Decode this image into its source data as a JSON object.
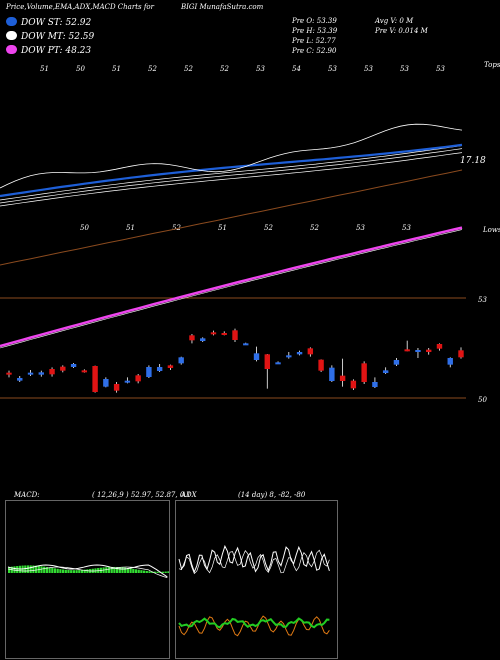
{
  "header": {
    "title": "Price,Volume,EMA,ADX,MACD Charts for",
    "symbol": "BIGI",
    "site": "MunafaSutra.com"
  },
  "legend": [
    {
      "label": "DOW ST: 52.92",
      "color": "#1e5fd8"
    },
    {
      "label": "DOW MT: 52.59",
      "color": "#ffffff"
    },
    {
      "label": "DOW PT: 48.23",
      "color": "#ee44ee"
    }
  ],
  "quote": {
    "open": "Pre  O: 53.39",
    "high": "Pre  H: 53.39",
    "low": "Pre  L: 52.77",
    "close": "Pre  C: 52.90",
    "avgvol": "Avg V: 0  M",
    "vol": "Pre  V: 0.014  M"
  },
  "upper_panel": {
    "top_labels": [
      "51",
      "50",
      "51",
      "52",
      "52",
      "52",
      "53",
      "54",
      "53",
      "53",
      "53",
      "53"
    ],
    "right_top": "Tops",
    "price_label": "17.18",
    "lower_labels": [
      "50",
      "51",
      "52",
      "51",
      "52",
      "52",
      "53",
      "53"
    ],
    "right_lows": "Lows"
  },
  "price_axis": {
    "label_high": "53",
    "label_low": "50"
  },
  "macd": {
    "title": "MACD:",
    "params": "( 12,26,9 ) 52.97, 52.87, 0.1"
  },
  "adx": {
    "title": "ADX",
    "params": "(14 day) 8, -82, -80"
  },
  "chart_data": {
    "type": "candlestick",
    "title": "Price,Volume,EMA,ADX,MACD Charts for BIGI",
    "candles": [
      {
        "o": 50.76,
        "c": 50.7,
        "h": 50.82,
        "l": 50.62,
        "dir": "down"
      },
      {
        "o": 50.52,
        "c": 50.6,
        "h": 50.66,
        "l": 50.48,
        "dir": "up"
      },
      {
        "o": 50.7,
        "c": 50.76,
        "h": 50.84,
        "l": 50.66,
        "dir": "up"
      },
      {
        "o": 50.7,
        "c": 50.77,
        "h": 50.82,
        "l": 50.64,
        "dir": "up"
      },
      {
        "o": 50.87,
        "c": 50.71,
        "h": 50.92,
        "l": 50.64,
        "dir": "down"
      },
      {
        "o": 50.94,
        "c": 50.82,
        "h": 50.98,
        "l": 50.77,
        "dir": "down"
      },
      {
        "o": 50.93,
        "c": 51.02,
        "h": 51.05,
        "l": 50.9,
        "dir": "up"
      },
      {
        "o": 50.83,
        "c": 50.79,
        "h": 50.86,
        "l": 50.76,
        "dir": "down"
      },
      {
        "o": 50.96,
        "c": 50.18,
        "h": 50.97,
        "l": 50.16,
        "dir": "down"
      },
      {
        "o": 50.34,
        "c": 50.57,
        "h": 50.62,
        "l": 50.32,
        "dir": "up"
      },
      {
        "o": 50.42,
        "c": 50.22,
        "h": 50.48,
        "l": 50.16,
        "dir": "down"
      },
      {
        "o": 50.48,
        "c": 50.52,
        "h": 50.62,
        "l": 50.44,
        "dir": "up"
      },
      {
        "o": 50.68,
        "c": 50.5,
        "h": 50.72,
        "l": 50.44,
        "dir": "down"
      },
      {
        "o": 50.63,
        "c": 50.93,
        "h": 50.98,
        "l": 50.6,
        "dir": "up"
      },
      {
        "o": 50.81,
        "c": 50.93,
        "h": 51.02,
        "l": 50.78,
        "dir": "up"
      },
      {
        "o": 50.98,
        "c": 50.9,
        "h": 51.0,
        "l": 50.84,
        "dir": "down"
      },
      {
        "o": 51.04,
        "c": 51.22,
        "h": 51.24,
        "l": 51.0,
        "dir": "up"
      },
      {
        "o": 51.88,
        "c": 51.73,
        "h": 51.92,
        "l": 51.64,
        "dir": "down"
      },
      {
        "o": 51.71,
        "c": 51.79,
        "h": 51.82,
        "l": 51.68,
        "dir": "up"
      },
      {
        "o": 51.97,
        "c": 51.92,
        "h": 52.02,
        "l": 51.88,
        "dir": "down"
      },
      {
        "o": 51.95,
        "c": 51.92,
        "h": 52.0,
        "l": 51.88,
        "dir": "down"
      },
      {
        "o": 52.03,
        "c": 51.74,
        "h": 52.08,
        "l": 51.68,
        "dir": "down"
      },
      {
        "o": 51.61,
        "c": 51.64,
        "h": 51.66,
        "l": 51.6,
        "dir": "up"
      },
      {
        "o": 51.14,
        "c": 51.34,
        "h": 51.54,
        "l": 51.1,
        "dir": "up"
      },
      {
        "o": 51.31,
        "c": 50.87,
        "h": 51.32,
        "l": 50.28,
        "dir": "down"
      },
      {
        "o": 51.05,
        "c": 51.07,
        "h": 51.1,
        "l": 51.02,
        "dir": "up"
      },
      {
        "o": 51.22,
        "c": 51.28,
        "h": 51.38,
        "l": 51.18,
        "dir": "up"
      },
      {
        "o": 51.31,
        "c": 51.38,
        "h": 51.42,
        "l": 51.28,
        "dir": "up"
      },
      {
        "o": 51.49,
        "c": 51.31,
        "h": 51.52,
        "l": 51.24,
        "dir": "down"
      },
      {
        "o": 51.15,
        "c": 50.82,
        "h": 51.16,
        "l": 50.78,
        "dir": "down"
      },
      {
        "o": 50.91,
        "c": 50.51,
        "h": 50.98,
        "l": 50.48,
        "dir": "up"
      },
      {
        "o": 50.67,
        "c": 50.51,
        "h": 51.18,
        "l": 50.34,
        "dir": "down"
      },
      {
        "o": 50.52,
        "c": 50.29,
        "h": 50.56,
        "l": 50.24,
        "dir": "down"
      },
      {
        "o": 51.04,
        "c": 50.48,
        "h": 51.1,
        "l": 50.42,
        "dir": "down"
      },
      {
        "o": 50.48,
        "c": 50.33,
        "h": 50.62,
        "l": 50.3,
        "dir": "up"
      },
      {
        "o": 50.75,
        "c": 50.83,
        "h": 50.92,
        "l": 50.72,
        "dir": "up"
      },
      {
        "o": 51.14,
        "c": 51.0,
        "h": 51.2,
        "l": 50.96,
        "dir": "up"
      },
      {
        "o": 51.46,
        "c": 51.44,
        "h": 51.72,
        "l": 51.4,
        "dir": "down"
      },
      {
        "o": 51.39,
        "c": 51.44,
        "h": 51.5,
        "l": 51.2,
        "dir": "up"
      },
      {
        "o": 51.45,
        "c": 51.38,
        "h": 51.5,
        "l": 51.3,
        "dir": "down"
      },
      {
        "o": 51.62,
        "c": 51.48,
        "h": 51.64,
        "l": 51.42,
        "dir": "down"
      },
      {
        "o": 51.2,
        "c": 51.0,
        "h": 51.22,
        "l": 50.92,
        "dir": "up"
      },
      {
        "o": 51.43,
        "c": 51.22,
        "h": 51.52,
        "l": 51.18,
        "dir": "down"
      }
    ],
    "lines": [
      {
        "name": "DOW ST",
        "color": "#1e5fd8"
      },
      {
        "name": "DOW MT",
        "color": "#ffffff"
      },
      {
        "name": "DOW PT",
        "color": "#ee44ee"
      }
    ]
  }
}
